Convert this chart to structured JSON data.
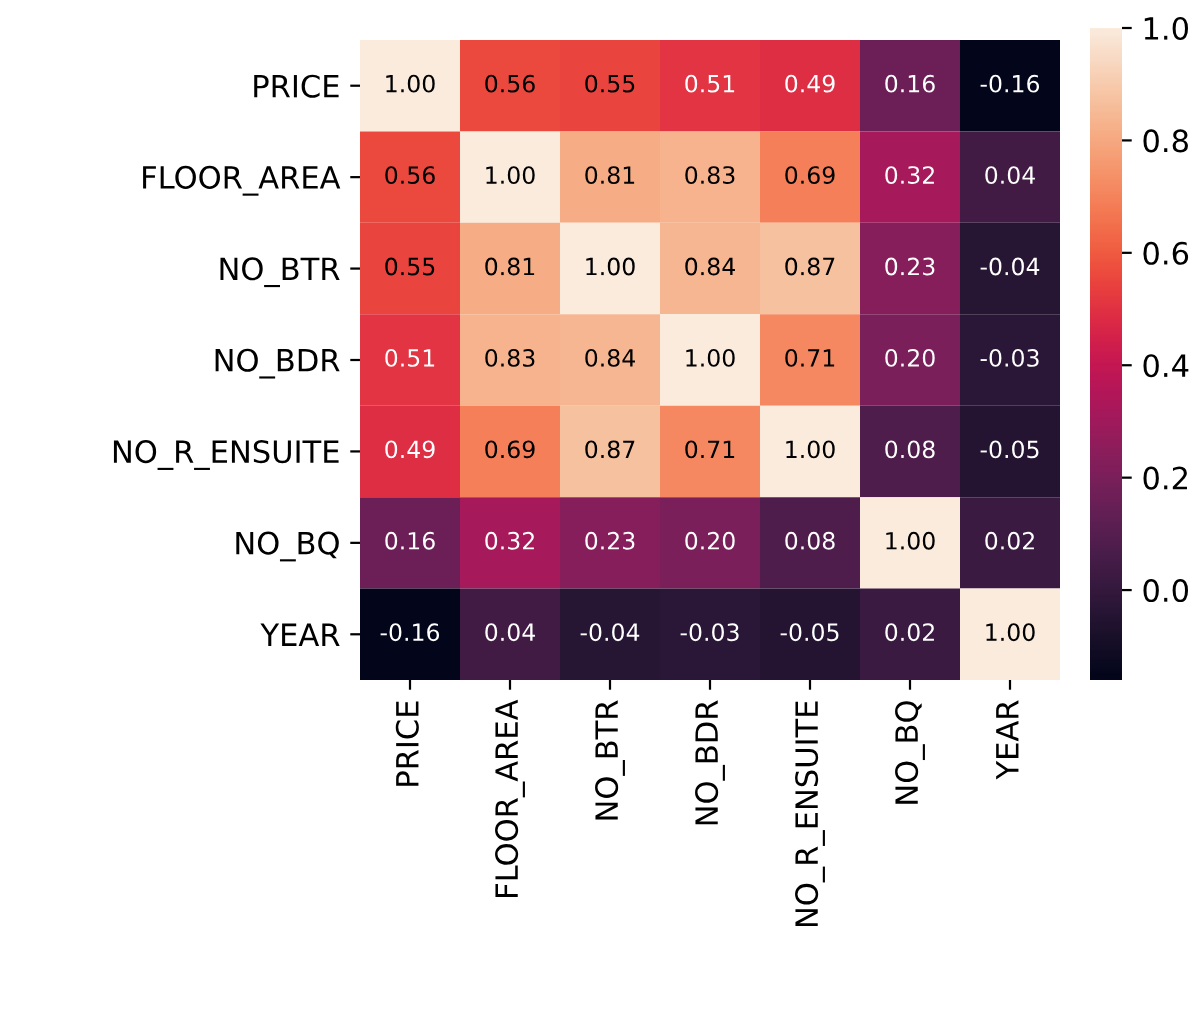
{
  "chart_data": {
    "type": "heatmap",
    "categories": [
      "PRICE",
      "FLOOR_AREA",
      "NO_BTR",
      "NO_BDR",
      "NO_R_ENSUITE",
      "NO_BQ",
      "YEAR"
    ],
    "y_categories": [
      "PRICE",
      "FLOOR_AREA",
      "NO_BTR",
      "NO_BDR",
      "NO_R_ENSUITE",
      "NO_BQ",
      "YEAR"
    ],
    "cells": [
      [
        1.0,
        0.56,
        0.55,
        0.51,
        0.49,
        0.16,
        -0.16
      ],
      [
        0.56,
        1.0,
        0.81,
        0.83,
        0.69,
        0.32,
        0.04
      ],
      [
        0.55,
        0.81,
        1.0,
        0.84,
        0.87,
        0.23,
        -0.04
      ],
      [
        0.51,
        0.83,
        0.84,
        1.0,
        0.71,
        0.2,
        -0.03
      ],
      [
        0.49,
        0.69,
        0.87,
        0.71,
        1.0,
        0.08,
        -0.05
      ],
      [
        0.16,
        0.32,
        0.23,
        0.2,
        0.08,
        1.0,
        0.02
      ],
      [
        -0.16,
        0.04,
        -0.04,
        -0.03,
        -0.05,
        0.02,
        1.0
      ]
    ],
    "cell_labels": [
      [
        "1.00",
        "0.56",
        "0.55",
        "0.51",
        "0.49",
        "0.16",
        "-0.16"
      ],
      [
        "0.56",
        "1.00",
        "0.81",
        "0.83",
        "0.69",
        "0.32",
        "0.04"
      ],
      [
        "0.55",
        "0.81",
        "1.00",
        "0.84",
        "0.87",
        "0.23",
        "-0.04"
      ],
      [
        "0.51",
        "0.83",
        "0.84",
        "1.00",
        "0.71",
        "0.20",
        "-0.03"
      ],
      [
        "0.49",
        "0.69",
        "0.87",
        "0.71",
        "1.00",
        "0.08",
        "-0.05"
      ],
      [
        "0.16",
        "0.32",
        "0.23",
        "0.20",
        "0.08",
        "1.00",
        "0.02"
      ],
      [
        "-0.16",
        "0.04",
        "-0.04",
        "-0.03",
        "-0.05",
        "0.02",
        "1.00"
      ]
    ],
    "clim": [
      -0.16,
      1.0
    ],
    "cticks": [
      {
        "value": 0,
        "label": "0.0"
      },
      0.2,
      0.4,
      0.6,
      0.8,
      {
        "value": 1,
        "label": "1.0"
      }
    ]
  }
}
